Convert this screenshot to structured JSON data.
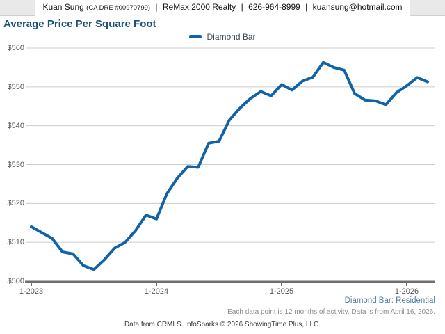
{
  "header": {
    "agent": "Kuan Sung",
    "license": "(CA DRE #00970799)",
    "brokerage": "ReMax 2000 Realty",
    "phone": "626-964-8999",
    "email": "kuansung@hotmail.com",
    "separator": "|"
  },
  "title": "Average Price Per Square Foot",
  "legend": {
    "label": "Diamond Bar",
    "color": "#0f63a6"
  },
  "chart_data": {
    "type": "line",
    "title": "Average Price Per Square Foot",
    "x": [
      "1-2023",
      "2-2023",
      "3-2023",
      "4-2023",
      "5-2023",
      "6-2023",
      "7-2023",
      "8-2023",
      "9-2023",
      "10-2023",
      "11-2023",
      "12-2023",
      "1-2024",
      "2-2024",
      "3-2024",
      "4-2024",
      "5-2024",
      "6-2024",
      "7-2024",
      "8-2024",
      "9-2024",
      "10-2024",
      "11-2024",
      "12-2024",
      "1-2025",
      "2-2025",
      "3-2025",
      "4-2025",
      "5-2025",
      "6-2025",
      "7-2025",
      "8-2025",
      "9-2025",
      "10-2025",
      "11-2025",
      "12-2025",
      "1-2026",
      "2-2026",
      "3-2026"
    ],
    "series": [
      {
        "name": "Diamond Bar",
        "color": "#0f63a6",
        "values": [
          514,
          512.5,
          511,
          507.5,
          507,
          504,
          503,
          505.5,
          508.5,
          510,
          513,
          517,
          516,
          522.5,
          526.5,
          529.5,
          529.3,
          535.5,
          536,
          541.5,
          544.5,
          547,
          548.8,
          547.7,
          550.6,
          549.2,
          551.5,
          552.5,
          556.3,
          555,
          554.3,
          548.3,
          546.6,
          546.4,
          545.4,
          548.5,
          550.3,
          552.4,
          551.3
        ]
      }
    ],
    "ylim": [
      500,
      560
    ],
    "ytick_step": 10,
    "ytick_prefix": "$",
    "x_tick_labels": [
      "1-2023",
      "1-2024",
      "1-2025",
      "1-2026"
    ],
    "x_tick_indices": [
      0,
      12,
      24,
      36
    ],
    "grid": "horizontal",
    "legend_position": "top-center"
  },
  "footer": {
    "context_label": "Diamond Bar: Residential",
    "note": "Each data point is 12 months of activity. Data is from April 16, 2026.",
    "attribution": "Data from CRMLS. InfoSparks © 2026 ShowingTime Plus, LLC."
  }
}
